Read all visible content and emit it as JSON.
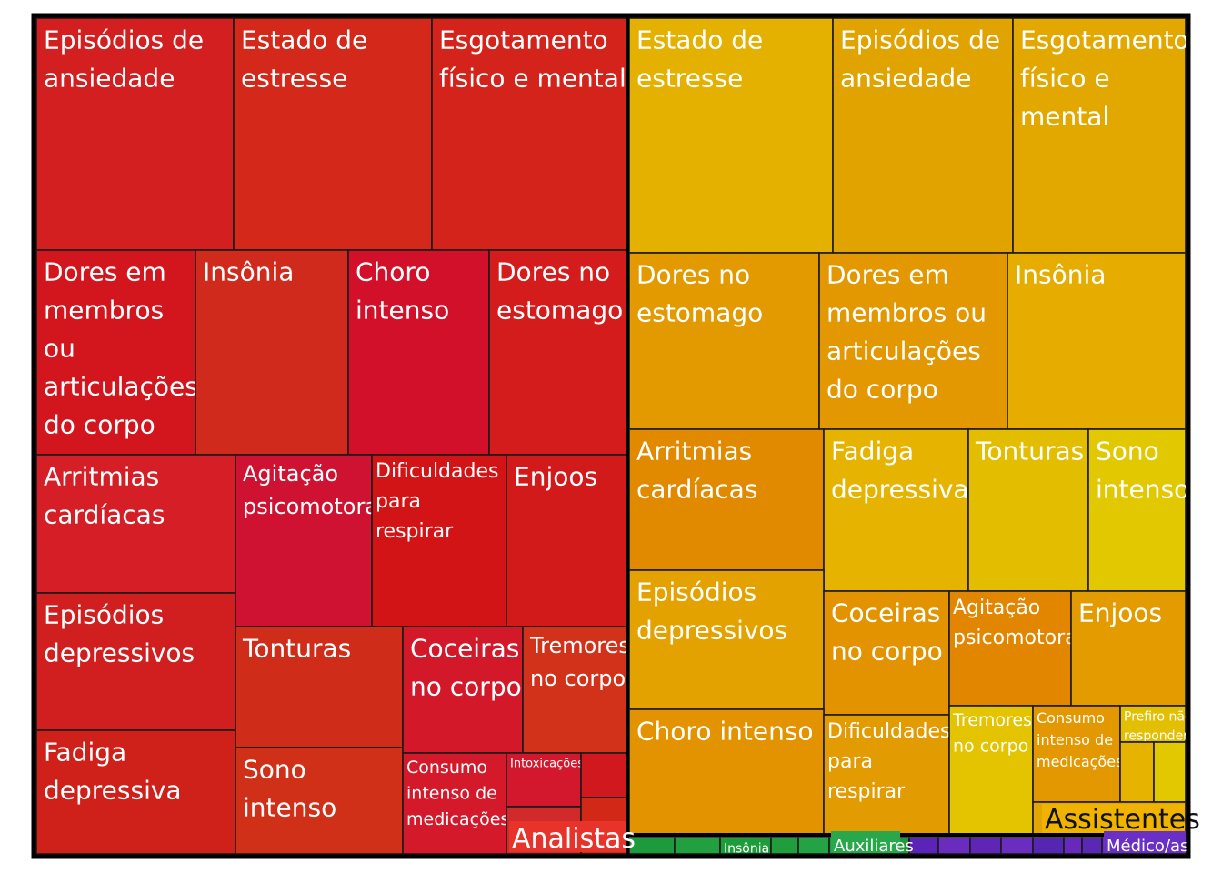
{
  "chart_data": {
    "type": "treemap",
    "groups": [
      {
        "name": "Analistas",
        "color": "#cc2a1a",
        "items": [
          {
            "label": "Episódios de ansiedade",
            "value": 100,
            "color": "#d31f1f"
          },
          {
            "label": "Estado de estresse",
            "value": 100,
            "color": "#d3281a"
          },
          {
            "label": "Esgotamento físico e mental",
            "value": 99,
            "color": "#d3231a"
          },
          {
            "label": "Dores em membros ou articulações do corpo",
            "value": 81,
            "color": "#d3161e"
          },
          {
            "label": "Insônia",
            "value": 77,
            "color": "#d02a1c"
          },
          {
            "label": "Choro intenso",
            "value": 71,
            "color": "#d3102a"
          },
          {
            "label": "Dores no estomago",
            "value": 68,
            "color": "#d51c1c"
          },
          {
            "label": "Arritmias cardíacas",
            "value": 60,
            "color": "#d51e26"
          },
          {
            "label": "Episódios depressivos",
            "value": 60,
            "color": "#d11f20"
          },
          {
            "label": "Fadiga depressiva",
            "value": 60,
            "color": "#cf201a"
          },
          {
            "label": "Agitação psicomotora",
            "value": 48,
            "color": "#d01232"
          },
          {
            "label": "Dificuldades para respirar",
            "value": 43,
            "color": "#d31416"
          },
          {
            "label": "Enjoos",
            "value": 38,
            "color": "#d31a1a"
          },
          {
            "label": "Tonturas",
            "value": 36,
            "color": "#cf2c1a"
          },
          {
            "label": "Sono intenso",
            "value": 33,
            "color": "#d03018"
          },
          {
            "label": "Coceiras no corpo",
            "value": 27,
            "color": "#d3182a"
          },
          {
            "label": "Tremores no corpo",
            "value": 25,
            "color": "#d13219"
          },
          {
            "label": "Consumo intenso de medicações",
            "value": 22,
            "color": "#d3192a"
          },
          {
            "label": "Intoxicações",
            "value": 11,
            "color": "#d3182d"
          },
          {
            "label": "",
            "value": 11,
            "color": "#d02a2a"
          },
          {
            "label": "",
            "value": 6,
            "color": "#d0181e"
          },
          {
            "label": "",
            "value": 6,
            "color": "#d22818"
          }
        ]
      },
      {
        "name": "Assistentes",
        "color": "#e0a000",
        "items": [
          {
            "label": "Estado de estresse",
            "value": 100,
            "color": "#e5b100"
          },
          {
            "label": "Episódios de ansiedade",
            "value": 92,
            "color": "#e1a300"
          },
          {
            "label": "Esgotamento físico e mental",
            "value": 88,
            "color": "#e2a800"
          },
          {
            "label": "Dores no estomago",
            "value": 69,
            "color": "#e39a00"
          },
          {
            "label": "Dores em membros ou articulações do corpo",
            "value": 69,
            "color": "#e39700"
          },
          {
            "label": "Insônia",
            "value": 65,
            "color": "#e6ac00"
          },
          {
            "label": "Arritmias cardíacas",
            "value": 53,
            "color": "#e18a00"
          },
          {
            "label": "Fadiga depressiva",
            "value": 44,
            "color": "#e6b400"
          },
          {
            "label": "Tonturas",
            "value": 37,
            "color": "#e3be00"
          },
          {
            "label": "Sono intenso",
            "value": 37,
            "color": "#e2c800"
          },
          {
            "label": "Episódios depressivos",
            "value": 52,
            "color": "#e3a200"
          },
          {
            "label": "Coceiras no corpo",
            "value": 33,
            "color": "#e39300"
          },
          {
            "label": "Agitação psicomotora",
            "value": 30,
            "color": "#e28600"
          },
          {
            "label": "Enjoos",
            "value": 28,
            "color": "#e39b00"
          },
          {
            "label": "Choro intenso",
            "value": 54,
            "color": "#e39200"
          },
          {
            "label": "Dificuldades para respirar",
            "value": 31,
            "color": "#e29b00"
          },
          {
            "label": "Tremores no corpo",
            "value": 21,
            "color": "#e4c400"
          },
          {
            "label": "Consumo intenso de medicações",
            "value": 20,
            "color": "#e39700"
          },
          {
            "label": "Prefiro não responder",
            "value": 8,
            "color": "#e2bf00"
          },
          {
            "label": "",
            "value": 5,
            "color": "#e6b400"
          },
          {
            "label": "",
            "value": 5,
            "color": "#e2c800"
          },
          {
            "label": "",
            "value": 5,
            "color": "#e3a600"
          }
        ]
      },
      {
        "name": "Auxiliares",
        "color": "#20a040",
        "items": [
          {
            "label": "",
            "value": 1,
            "color": "#1d9a3c"
          },
          {
            "label": "",
            "value": 1,
            "color": "#22a040"
          },
          {
            "label": "Insônia",
            "value": 1,
            "color": "#1f9c3a"
          },
          {
            "label": "",
            "value": 1,
            "color": "#209e3e"
          },
          {
            "label": "",
            "value": 1,
            "color": "#23a343"
          },
          {
            "label": "",
            "value": 1,
            "color": "#1e9a3d"
          }
        ]
      },
      {
        "name": "Médico/as",
        "color": "#5a2ab5",
        "items": [
          {
            "label": "",
            "value": 1,
            "color": "#5a24b8"
          },
          {
            "label": "",
            "value": 1,
            "color": "#6a2bbf"
          },
          {
            "label": "",
            "value": 1,
            "color": "#5f26b5"
          },
          {
            "label": "",
            "value": 1,
            "color": "#6b2dc0"
          },
          {
            "label": "",
            "value": 1,
            "color": "#5526b2"
          },
          {
            "label": "",
            "value": 1,
            "color": "#6629bb"
          },
          {
            "label": "",
            "value": 1,
            "color": "#5b28b6"
          },
          {
            "label": "",
            "value": 1,
            "color": "#6a2cbe"
          }
        ]
      }
    ]
  }
}
